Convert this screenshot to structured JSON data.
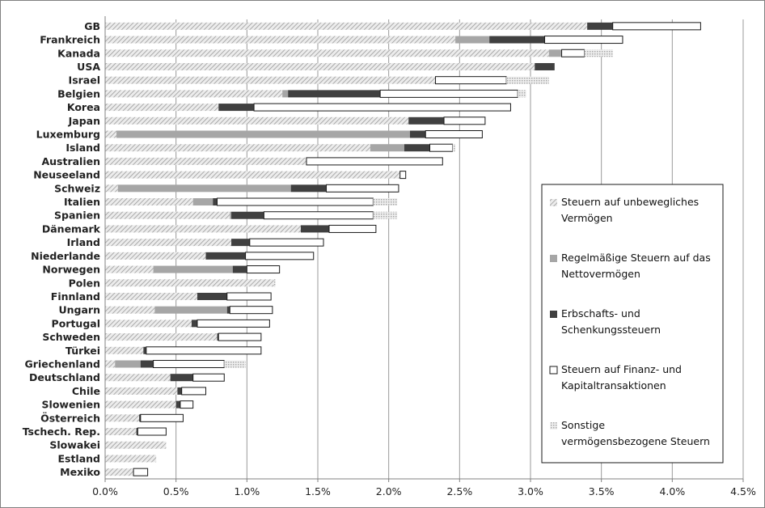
{
  "chart_data": {
    "type": "bar",
    "orientation": "horizontal",
    "stacked": true,
    "title": "",
    "xlabel": "",
    "ylabel": "",
    "xlim": [
      0,
      4.5
    ],
    "x_ticks": [
      "0.0%",
      "0.5%",
      "1.0%",
      "1.5%",
      "2.0%",
      "2.5%",
      "3.0%",
      "3.5%",
      "4.0%",
      "4.5%"
    ],
    "grid": "vertical",
    "legend_position": "right",
    "categories": [
      "GB",
      "Frankreich",
      "Kanada",
      "USA",
      "Israel",
      "Belgien",
      "Korea",
      "Japan",
      "Luxemburg",
      "Island",
      "Australien",
      "Neuseeland",
      "Schweiz",
      "Italien",
      "Spanien",
      "Dänemark",
      "Irland",
      "Niederlande",
      "Norwegen",
      "Polen",
      "Finnland",
      "Ungarn",
      "Portugal",
      "Schweden",
      "Türkei",
      "Griechenland",
      "Deutschland",
      "Chile",
      "Slowenien",
      "Österreich",
      "Tschech. Rep.",
      "Slowakei",
      "Estland",
      "Mexiko"
    ],
    "series": [
      {
        "name": "Steuern auf unbewegliches Vermögen",
        "color": "#bfbfbf",
        "pattern": "hatch",
        "values": [
          3.4,
          2.47,
          3.13,
          3.03,
          2.33,
          1.25,
          0.8,
          2.14,
          0.08,
          1.87,
          1.42,
          2.08,
          0.09,
          0.62,
          0.88,
          1.38,
          0.89,
          0.71,
          0.34,
          1.19,
          0.65,
          0.35,
          0.61,
          0.79,
          0.27,
          0.07,
          0.46,
          0.51,
          0.5,
          0.24,
          0.22,
          0.43,
          0.36,
          0.2
        ]
      },
      {
        "name": "Regelmäßige Steuern auf das Nettovermögen",
        "color": "#a6a6a6",
        "pattern": "solid",
        "values": [
          0,
          0.24,
          0.09,
          0,
          0,
          0.04,
          0,
          0,
          2.07,
          0.24,
          0,
          0,
          1.22,
          0.14,
          0.01,
          0,
          0,
          0,
          0.56,
          0,
          0,
          0.51,
          0,
          0,
          0,
          0.18,
          0,
          0,
          0,
          0,
          0,
          0,
          0,
          0
        ]
      },
      {
        "name": "Erbschafts- und Schenkungssteuern",
        "color": "#404040",
        "pattern": "solid",
        "values": [
          0.18,
          0.39,
          0,
          0.14,
          0,
          0.65,
          0.25,
          0.25,
          0.11,
          0.18,
          0,
          0,
          0.25,
          0.03,
          0.23,
          0.2,
          0.13,
          0.28,
          0.1,
          0,
          0.21,
          0.02,
          0.04,
          0.01,
          0.02,
          0.09,
          0.16,
          0.03,
          0.03,
          0.01,
          0.01,
          0,
          0,
          0
        ]
      },
      {
        "name": "Steuern auf Finanz- und Kapitaltransaktionen",
        "color": "#ffffff",
        "pattern": "outline",
        "values": [
          0.62,
          0.55,
          0.16,
          0,
          0.5,
          0.97,
          1.81,
          0.29,
          0.4,
          0.16,
          0.96,
          0.04,
          0.51,
          1.1,
          0.77,
          0.33,
          0.52,
          0.48,
          0.23,
          0,
          0.31,
          0.3,
          0.51,
          0.3,
          0.81,
          0.5,
          0.22,
          0.17,
          0.09,
          0.3,
          0.2,
          0,
          0,
          0.1
        ]
      },
      {
        "name": "Sonstige vermögensbezogene Steuern",
        "color": "#d9d9d9",
        "pattern": "dotted",
        "values": [
          0,
          0,
          0.2,
          0,
          0.3,
          0.06,
          0,
          0,
          0,
          0.02,
          0,
          0,
          0,
          0.17,
          0.17,
          0,
          0,
          0,
          0,
          0.01,
          0,
          0,
          0,
          0,
          0,
          0.15,
          0,
          0,
          0,
          0,
          0,
          0,
          0,
          0
        ]
      }
    ],
    "legend": {
      "entries": [
        [
          "Steuern auf unbewegliches",
          "Vermögen"
        ],
        [
          "Regelmäßige Steuern auf das",
          "Nettovermögen"
        ],
        [
          "Erbschafts- und",
          "Schenkungssteuern"
        ],
        [
          "Steuern auf Finanz- und",
          "Kapitaltransaktionen"
        ],
        [
          "Sonstige",
          "vermögensbezogene Steuern"
        ]
      ]
    }
  }
}
